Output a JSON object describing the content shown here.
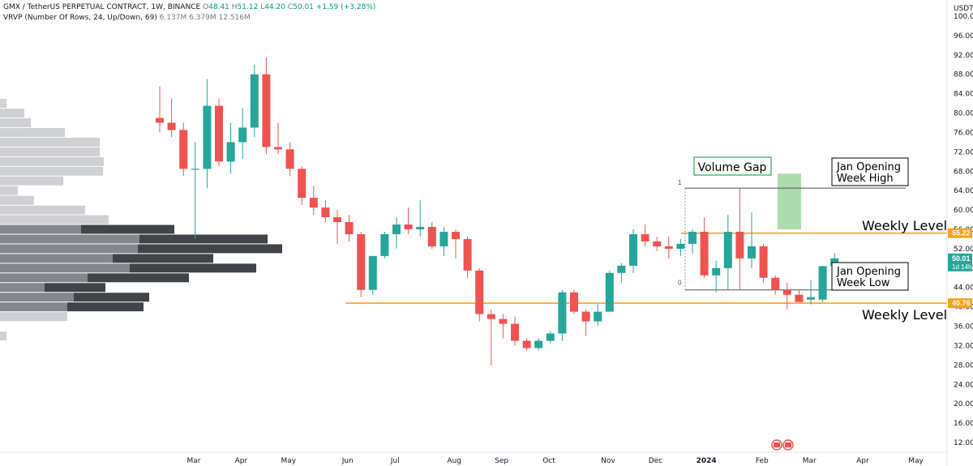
{
  "header": {
    "ticker": "GMX / TetherUS PERPETUAL CONTRACT, 1W, BINANCE",
    "o_label": "O",
    "o_value": "48.41",
    "h_label": "H",
    "h_value": "51.12",
    "l_label": "L",
    "l_value": "44.20",
    "c_label": "C",
    "c_value": "50.01",
    "change": "+1.59 (+3.28%)",
    "vrvp_label": "VRVP (Number Of Rows, 24, Up/Down, 69)",
    "vrvp_values": [
      "6.137M",
      "6.379M",
      "12.516M"
    ]
  },
  "axis": {
    "currency": "USDT",
    "ticks": [
      "100.00",
      "96.00",
      "92.00",
      "88.00",
      "84.00",
      "80.00",
      "76.00",
      "72.00",
      "68.00",
      "64.00",
      "60.00",
      "56.00",
      "52.00",
      "48.00",
      "44.00",
      "40.00",
      "36.00",
      "32.00",
      "28.00",
      "24.00",
      "20.00",
      "16.00",
      "12.00"
    ],
    "price_tags": [
      {
        "value": 55.22,
        "label": "55.22",
        "color": "#f7a21b"
      },
      {
        "value": 50.01,
        "label": "50.01",
        "sub": "1d 14h",
        "color": "#26a69a"
      },
      {
        "value": 40.76,
        "label": "40.76",
        "color": "#f7a21b"
      }
    ]
  },
  "time_axis": [
    {
      "label": "Mar",
      "week": 0
    },
    {
      "label": "Apr",
      "week": 4
    },
    {
      "label": "May",
      "week": 8
    },
    {
      "label": "Jun",
      "week": 13
    },
    {
      "label": "Jul",
      "week": 17
    },
    {
      "label": "Aug",
      "week": 22
    },
    {
      "label": "Sep",
      "week": 26
    },
    {
      "label": "Oct",
      "week": 30
    },
    {
      "label": "Nov",
      "week": 35
    },
    {
      "label": "Dec",
      "week": 39
    },
    {
      "label": "2024",
      "week": 43.3,
      "bold": true
    },
    {
      "label": "Feb",
      "week": 48
    },
    {
      "label": "Mar",
      "week": 52
    },
    {
      "label": "Apr",
      "week": 56.5
    },
    {
      "label": "May",
      "week": 61
    }
  ],
  "annotations": {
    "volume_gap": "Volume Gap",
    "jan_high": [
      "Jan Opening",
      "Week High"
    ],
    "jan_low": [
      "Jan Opening",
      "Week Low"
    ],
    "weekly_level_top": "Weekly Level",
    "weekly_level_bottom": "Weekly Level",
    "fib_1": "1",
    "fib_0": "0"
  },
  "chart_data": {
    "type": "candlestick",
    "interval": "1W",
    "ylim": [
      10,
      102
    ],
    "colors": {
      "up": "#26a69a",
      "down": "#ef5350",
      "level": "#f7a21b"
    },
    "candles": [
      {
        "o": 79.0,
        "h": 85.5,
        "l": 76.0,
        "c": 78.0
      },
      {
        "o": 78.0,
        "h": 83.0,
        "l": 75.0,
        "c": 76.5
      },
      {
        "o": 76.5,
        "h": 78.0,
        "l": 67.0,
        "c": 68.5
      },
      {
        "o": 68.5,
        "h": 74.0,
        "l": 54.0,
        "c": 68.5
      },
      {
        "o": 68.5,
        "h": 87.0,
        "l": 64.5,
        "c": 81.5
      },
      {
        "o": 81.5,
        "h": 83.0,
        "l": 69.0,
        "c": 70.0
      },
      {
        "o": 70.0,
        "h": 78.0,
        "l": 67.5,
        "c": 74.0
      },
      {
        "o": 74.0,
        "h": 81.0,
        "l": 70.5,
        "c": 77.0
      },
      {
        "o": 77.0,
        "h": 90.0,
        "l": 75.0,
        "c": 88.0
      },
      {
        "o": 88.0,
        "h": 91.5,
        "l": 71.5,
        "c": 73.0
      },
      {
        "o": 73.0,
        "h": 78.0,
        "l": 71.5,
        "c": 72.5
      },
      {
        "o": 72.5,
        "h": 74.0,
        "l": 67.0,
        "c": 68.5
      },
      {
        "o": 68.5,
        "h": 69.0,
        "l": 61.0,
        "c": 62.5
      },
      {
        "o": 62.5,
        "h": 65.0,
        "l": 59.0,
        "c": 60.5
      },
      {
        "o": 60.5,
        "h": 62.0,
        "l": 57.5,
        "c": 58.5
      },
      {
        "o": 58.5,
        "h": 60.0,
        "l": 53.0,
        "c": 57.5
      },
      {
        "o": 57.5,
        "h": 59.0,
        "l": 53.5,
        "c": 55.0
      },
      {
        "o": 55.0,
        "h": 55.5,
        "l": 42.0,
        "c": 43.5
      },
      {
        "o": 43.5,
        "h": 50.5,
        "l": 42.5,
        "c": 50.5
      },
      {
        "o": 50.5,
        "h": 55.5,
        "l": 50.0,
        "c": 55.0
      },
      {
        "o": 55.0,
        "h": 58.5,
        "l": 52.0,
        "c": 57.0
      },
      {
        "o": 57.0,
        "h": 60.5,
        "l": 55.0,
        "c": 56.0
      },
      {
        "o": 56.0,
        "h": 62.0,
        "l": 54.5,
        "c": 56.5
      },
      {
        "o": 56.5,
        "h": 57.5,
        "l": 52.0,
        "c": 52.5
      },
      {
        "o": 52.5,
        "h": 56.5,
        "l": 50.5,
        "c": 55.5
      },
      {
        "o": 55.5,
        "h": 56.0,
        "l": 50.0,
        "c": 54.0
      },
      {
        "o": 54.0,
        "h": 54.5,
        "l": 46.0,
        "c": 47.5
      },
      {
        "o": 47.5,
        "h": 48.0,
        "l": 37.0,
        "c": 38.5
      },
      {
        "o": 38.5,
        "h": 39.5,
        "l": 28.0,
        "c": 37.5
      },
      {
        "o": 37.5,
        "h": 38.5,
        "l": 33.5,
        "c": 36.5
      },
      {
        "o": 36.5,
        "h": 38.0,
        "l": 32.0,
        "c": 33.0
      },
      {
        "o": 33.0,
        "h": 33.5,
        "l": 31.0,
        "c": 31.5
      },
      {
        "o": 31.5,
        "h": 33.5,
        "l": 31.0,
        "c": 33.0
      },
      {
        "o": 33.0,
        "h": 35.0,
        "l": 32.5,
        "c": 34.5
      },
      {
        "o": 34.5,
        "h": 43.5,
        "l": 33.0,
        "c": 43.0
      },
      {
        "o": 43.0,
        "h": 43.5,
        "l": 38.5,
        "c": 39.0
      },
      {
        "o": 39.0,
        "h": 39.5,
        "l": 34.0,
        "c": 37.0
      },
      {
        "o": 37.0,
        "h": 40.5,
        "l": 36.0,
        "c": 39.0
      },
      {
        "o": 39.0,
        "h": 47.5,
        "l": 39.0,
        "c": 47.0
      },
      {
        "o": 47.0,
        "h": 49.0,
        "l": 45.0,
        "c": 48.5
      },
      {
        "o": 48.5,
        "h": 56.0,
        "l": 47.0,
        "c": 55.0
      },
      {
        "o": 55.0,
        "h": 57.0,
        "l": 52.5,
        "c": 53.5
      },
      {
        "o": 53.5,
        "h": 54.5,
        "l": 51.5,
        "c": 52.5
      },
      {
        "o": 52.5,
        "h": 54.5,
        "l": 50.0,
        "c": 52.0
      },
      {
        "o": 52.0,
        "h": 54.0,
        "l": 50.5,
        "c": 53.0
      },
      {
        "o": 53.0,
        "h": 56.0,
        "l": 51.0,
        "c": 55.5
      },
      {
        "o": 55.5,
        "h": 58.5,
        "l": 46.0,
        "c": 46.5
      },
      {
        "o": 46.5,
        "h": 49.5,
        "l": 43.0,
        "c": 48.0
      },
      {
        "o": 48.0,
        "h": 59.0,
        "l": 43.5,
        "c": 55.5
      },
      {
        "o": 55.5,
        "h": 64.5,
        "l": 43.5,
        "c": 50.0
      },
      {
        "o": 50.0,
        "h": 59.5,
        "l": 48.0,
        "c": 52.5
      },
      {
        "o": 52.5,
        "h": 53.0,
        "l": 45.0,
        "c": 46.0
      },
      {
        "o": 46.0,
        "h": 46.5,
        "l": 42.5,
        "c": 43.5
      },
      {
        "o": 43.5,
        "h": 45.0,
        "l": 39.5,
        "c": 42.5
      },
      {
        "o": 42.5,
        "h": 43.5,
        "l": 41.5,
        "c": 41.0
      },
      {
        "o": 41.5,
        "h": 45.5,
        "l": 40.5,
        "c": 42.0
      },
      {
        "o": 41.5,
        "h": 48.5,
        "l": 41.0,
        "c": 48.4
      },
      {
        "o": 48.41,
        "h": 51.12,
        "l": 44.2,
        "c": 50.01
      }
    ],
    "volume_profile_rows": [
      {
        "price": 38.0,
        "up": 83,
        "down": 0
      },
      {
        "price": 40.0,
        "up": 83,
        "down": 177
      },
      {
        "price": 42.0,
        "up": 91,
        "down": 184
      },
      {
        "price": 44.0,
        "up": 55,
        "down": 130
      },
      {
        "price": 46.0,
        "up": 108,
        "down": 233
      },
      {
        "price": 48.0,
        "up": 160,
        "down": 316
      },
      {
        "price": 50.0,
        "up": 139,
        "down": 263
      },
      {
        "price": 52.0,
        "up": 170,
        "down": 348
      },
      {
        "price": 54.0,
        "up": 172,
        "down": 330
      },
      {
        "price": 56.0,
        "up": 100,
        "down": 215
      },
      {
        "price": 58.0,
        "up": 134,
        "down": 0
      },
      {
        "price": 60.0,
        "up": 105,
        "down": 0
      },
      {
        "price": 62.0,
        "up": 42,
        "down": 0
      },
      {
        "price": 64.0,
        "up": 22,
        "down": 0
      },
      {
        "price": 66.0,
        "up": 78,
        "down": 0
      },
      {
        "price": 68.0,
        "up": 127,
        "down": 0
      },
      {
        "price": 70.0,
        "up": 128,
        "down": 0
      },
      {
        "price": 72.0,
        "up": 123,
        "down": 0
      },
      {
        "price": 74.0,
        "up": 123,
        "down": 0
      },
      {
        "price": 76.0,
        "up": 80,
        "down": 0
      },
      {
        "price": 78.0,
        "up": 38,
        "down": 0
      },
      {
        "price": 80.0,
        "up": 30,
        "down": 0
      },
      {
        "price": 82.0,
        "up": 8,
        "down": 0
      },
      {
        "price": 34.0,
        "up": 8,
        "down": 0
      }
    ],
    "levels": [
      55.22,
      40.76
    ],
    "fib_lines": [
      {
        "label": "1",
        "value": 64.5
      },
      {
        "label": "0",
        "value": 43.5
      }
    ],
    "volume_gap_zone": [
      56.0,
      67.5
    ]
  }
}
